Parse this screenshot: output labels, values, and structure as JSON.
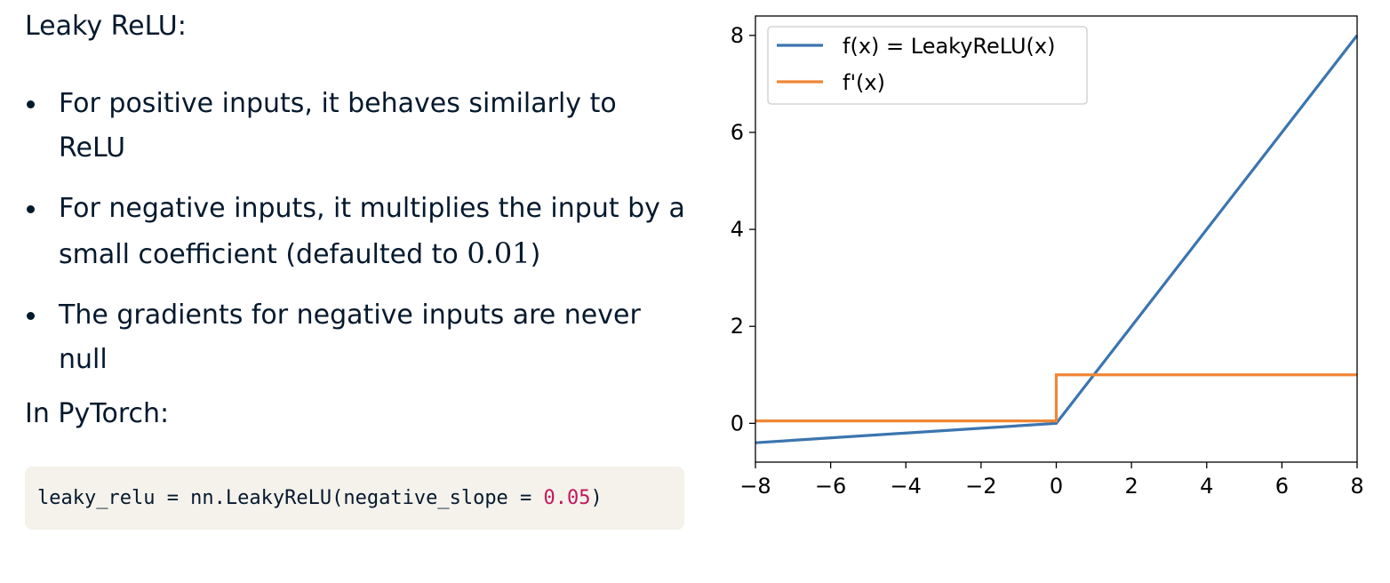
{
  "slide": {
    "heading": "Leaky ReLU:",
    "bullets": [
      {
        "text": "For positive inputs, it behaves similarly to ReLU",
        "math": ""
      },
      {
        "text": "For negative inputs, it multiplies the input by a small coefficient (defaulted to ",
        "math": "0.01",
        "suffix": ")"
      },
      {
        "text": "The gradients for negative inputs are never null",
        "math": ""
      }
    ],
    "subheading": "In PyTorch:",
    "code": {
      "before": "leaky_relu = nn.LeakyReLU(negative_slope = ",
      "number": "0.05",
      "after": ")"
    }
  },
  "chart_data": {
    "type": "line",
    "title": "",
    "xlabel": "",
    "ylabel": "",
    "xlim": [
      -8,
      8
    ],
    "ylim": [
      -0.8,
      8.4
    ],
    "xticks": [
      "−8",
      "−6",
      "−4",
      "−2",
      "0",
      "2",
      "4",
      "6",
      "8"
    ],
    "yticks": [
      "0",
      "2",
      "4",
      "6",
      "8"
    ],
    "grid": false,
    "legend": "top-left",
    "series": [
      {
        "name": "f(x) = LeakyReLU(x)",
        "color": "#3b75af",
        "x": [
          -8,
          0,
          8
        ],
        "y": [
          -0.4,
          0,
          8
        ]
      },
      {
        "name": "f'(x)",
        "color": "#ef8636",
        "x": [
          -8,
          0,
          0,
          8
        ],
        "y": [
          0.05,
          0.05,
          1,
          1
        ]
      }
    ]
  }
}
